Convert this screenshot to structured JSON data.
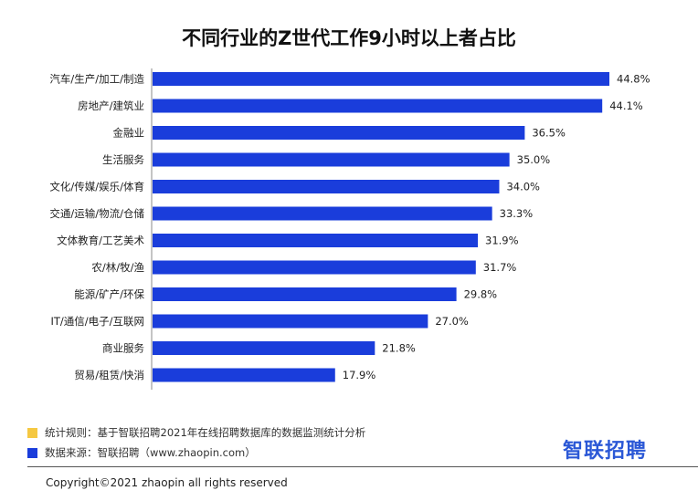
{
  "chart_data": {
    "type": "bar",
    "orientation": "horizontal",
    "title": "不同行业的Z世代工作9小时以上者占比",
    "categories": [
      "汽车/生产/加工/制造",
      "房地产/建筑业",
      "金融业",
      "生活服务",
      "文化/传媒/娱乐/体育",
      "交通/运输/物流/仓储",
      "文体教育/工艺美术",
      "农/林/牧/渔",
      "能源/矿产/环保",
      "IT/通信/电子/互联网",
      "商业服务",
      "贸易/租赁/快消"
    ],
    "values": [
      44.8,
      44.1,
      36.5,
      35.0,
      34.0,
      33.3,
      31.9,
      31.7,
      29.8,
      27.0,
      21.8,
      17.9
    ],
    "value_labels": [
      "44.8%",
      "44.1%",
      "36.5%",
      "35.0%",
      "34.0%",
      "33.3%",
      "31.9%",
      "31.7%",
      "29.8%",
      "27.0%",
      "21.8%",
      "17.9%"
    ],
    "xlim": [
      0,
      44.8
    ],
    "bar_color": "#1a3ddb",
    "grid": false,
    "legend": "none"
  },
  "notes": [
    {
      "text": "统计规则：基于智联招聘2021年在线招聘数据库的数据监测统计分析",
      "color": "#f5c842"
    },
    {
      "text": "数据来源：智联招聘（www.zhaopin.com）",
      "color": "#1a3ddb"
    }
  ],
  "brand": "智联招聘",
  "copyright": "Copyright©2021 zhaopin  all rights reserved"
}
